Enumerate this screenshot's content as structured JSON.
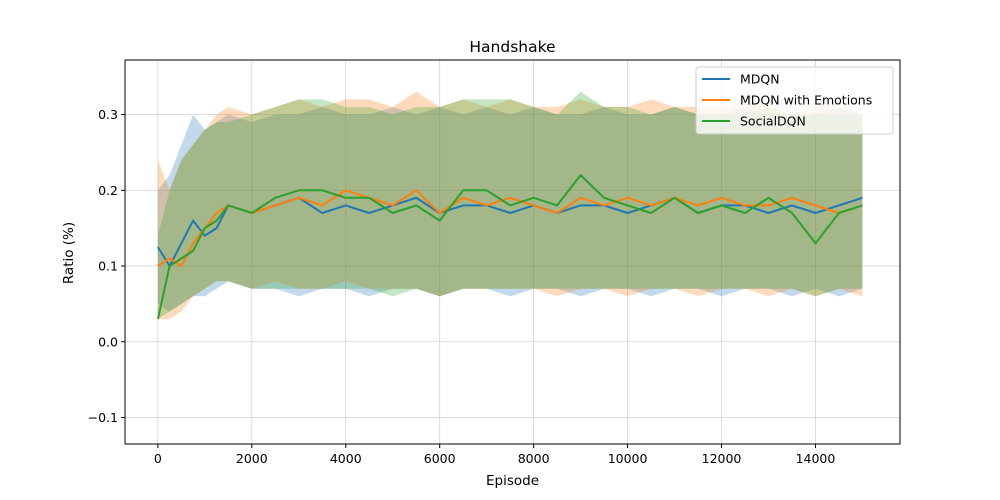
{
  "chart_data": {
    "type": "line",
    "title": "Handshake",
    "xlabel": "Episode",
    "ylabel": "Ratio (%)",
    "xlim": [
      -700,
      15800
    ],
    "ylim": [
      -0.135,
      0.372
    ],
    "xticks": [
      0,
      2000,
      4000,
      6000,
      8000,
      10000,
      12000,
      14000
    ],
    "xtick_labels": [
      "0",
      "2000",
      "4000",
      "6000",
      "8000",
      "10000",
      "12000",
      "14000"
    ],
    "yticks": [
      -0.1,
      0.0,
      0.1,
      0.2,
      0.3
    ],
    "ytick_labels": [
      "−0.1",
      "0.0",
      "0.1",
      "0.2",
      "0.3"
    ],
    "grid": true,
    "legend_position": "top-right",
    "series": [
      {
        "name": "MDQN",
        "color": "#1f77b4",
        "x": [
          0,
          250,
          500,
          750,
          1000,
          1250,
          1500,
          2000,
          2500,
          3000,
          3500,
          4000,
          4500,
          5000,
          5500,
          6000,
          6500,
          7000,
          7500,
          8000,
          8500,
          9000,
          9500,
          10000,
          10500,
          11000,
          11500,
          12000,
          12500,
          13000,
          13500,
          14000,
          14500,
          15000
        ],
        "y": [
          0.125,
          0.1,
          0.13,
          0.16,
          0.14,
          0.15,
          0.18,
          0.17,
          0.18,
          0.19,
          0.17,
          0.18,
          0.17,
          0.18,
          0.19,
          0.17,
          0.18,
          0.18,
          0.17,
          0.18,
          0.17,
          0.18,
          0.18,
          0.17,
          0.18,
          0.19,
          0.17,
          0.18,
          0.18,
          0.17,
          0.18,
          0.17,
          0.18,
          0.19
        ],
        "lower": [
          0.05,
          0.04,
          0.05,
          0.06,
          0.06,
          0.07,
          0.08,
          0.07,
          0.07,
          0.06,
          0.07,
          0.07,
          0.06,
          0.07,
          0.07,
          0.06,
          0.07,
          0.07,
          0.06,
          0.07,
          0.07,
          0.06,
          0.07,
          0.07,
          0.06,
          0.07,
          0.07,
          0.06,
          0.07,
          0.07,
          0.06,
          0.07,
          0.06,
          0.07
        ],
        "upper": [
          0.2,
          0.22,
          0.26,
          0.3,
          0.28,
          0.29,
          0.3,
          0.29,
          0.3,
          0.3,
          0.31,
          0.3,
          0.3,
          0.31,
          0.3,
          0.31,
          0.3,
          0.31,
          0.3,
          0.31,
          0.3,
          0.3,
          0.31,
          0.3,
          0.3,
          0.31,
          0.3,
          0.3,
          0.31,
          0.3,
          0.3,
          0.3,
          0.31,
          0.3
        ]
      },
      {
        "name": "MDQN with Emotions",
        "color": "#ff7f0e",
        "x": [
          0,
          250,
          500,
          750,
          1000,
          1250,
          1500,
          2000,
          2500,
          3000,
          3500,
          4000,
          4500,
          5000,
          5500,
          6000,
          6500,
          7000,
          7500,
          8000,
          8500,
          9000,
          9500,
          10000,
          10500,
          11000,
          11500,
          12000,
          12500,
          13000,
          13500,
          14000,
          14500,
          15000
        ],
        "y": [
          0.1,
          0.11,
          0.1,
          0.13,
          0.15,
          0.17,
          0.18,
          0.17,
          0.18,
          0.19,
          0.18,
          0.2,
          0.19,
          0.18,
          0.2,
          0.17,
          0.19,
          0.18,
          0.19,
          0.18,
          0.17,
          0.19,
          0.18,
          0.19,
          0.18,
          0.19,
          0.18,
          0.19,
          0.18,
          0.18,
          0.19,
          0.18,
          0.17,
          0.18
        ],
        "lower": [
          0.03,
          0.03,
          0.04,
          0.06,
          0.07,
          0.08,
          0.08,
          0.07,
          0.08,
          0.07,
          0.07,
          0.08,
          0.07,
          0.07,
          0.07,
          0.06,
          0.07,
          0.07,
          0.07,
          0.07,
          0.06,
          0.07,
          0.07,
          0.06,
          0.07,
          0.07,
          0.06,
          0.07,
          0.07,
          0.06,
          0.07,
          0.06,
          0.07,
          0.06
        ],
        "upper": [
          0.24,
          0.2,
          0.24,
          0.26,
          0.28,
          0.3,
          0.31,
          0.3,
          0.31,
          0.32,
          0.31,
          0.32,
          0.32,
          0.31,
          0.33,
          0.31,
          0.32,
          0.31,
          0.32,
          0.31,
          0.31,
          0.32,
          0.31,
          0.31,
          0.32,
          0.31,
          0.31,
          0.31,
          0.32,
          0.31,
          0.3,
          0.31,
          0.31,
          0.3
        ]
      },
      {
        "name": "SocialDQN",
        "color": "#2ca02c",
        "x": [
          0,
          250,
          500,
          750,
          1000,
          1250,
          1500,
          2000,
          2500,
          3000,
          3500,
          4000,
          4500,
          5000,
          5500,
          6000,
          6500,
          7000,
          7500,
          8000,
          8500,
          9000,
          9500,
          10000,
          10500,
          11000,
          11500,
          12000,
          12500,
          13000,
          13500,
          14000,
          14500,
          15000
        ],
        "y": [
          0.03,
          0.1,
          0.11,
          0.12,
          0.15,
          0.16,
          0.18,
          0.17,
          0.19,
          0.2,
          0.2,
          0.19,
          0.19,
          0.17,
          0.18,
          0.16,
          0.2,
          0.2,
          0.18,
          0.19,
          0.18,
          0.22,
          0.19,
          0.18,
          0.17,
          0.19,
          0.17,
          0.18,
          0.17,
          0.19,
          0.17,
          0.13,
          0.17,
          0.18
        ],
        "lower": [
          0.03,
          0.04,
          0.05,
          0.06,
          0.07,
          0.08,
          0.08,
          0.07,
          0.07,
          0.07,
          0.07,
          0.07,
          0.07,
          0.06,
          0.07,
          0.06,
          0.07,
          0.07,
          0.07,
          0.07,
          0.07,
          0.07,
          0.07,
          0.07,
          0.07,
          0.07,
          0.07,
          0.07,
          0.07,
          0.07,
          0.07,
          0.06,
          0.07,
          0.07
        ],
        "upper": [
          0.14,
          0.2,
          0.24,
          0.26,
          0.28,
          0.29,
          0.29,
          0.3,
          0.31,
          0.32,
          0.32,
          0.31,
          0.31,
          0.3,
          0.31,
          0.31,
          0.32,
          0.32,
          0.32,
          0.31,
          0.3,
          0.33,
          0.31,
          0.31,
          0.3,
          0.31,
          0.3,
          0.3,
          0.3,
          0.31,
          0.3,
          0.3,
          0.3,
          0.3
        ]
      }
    ]
  }
}
